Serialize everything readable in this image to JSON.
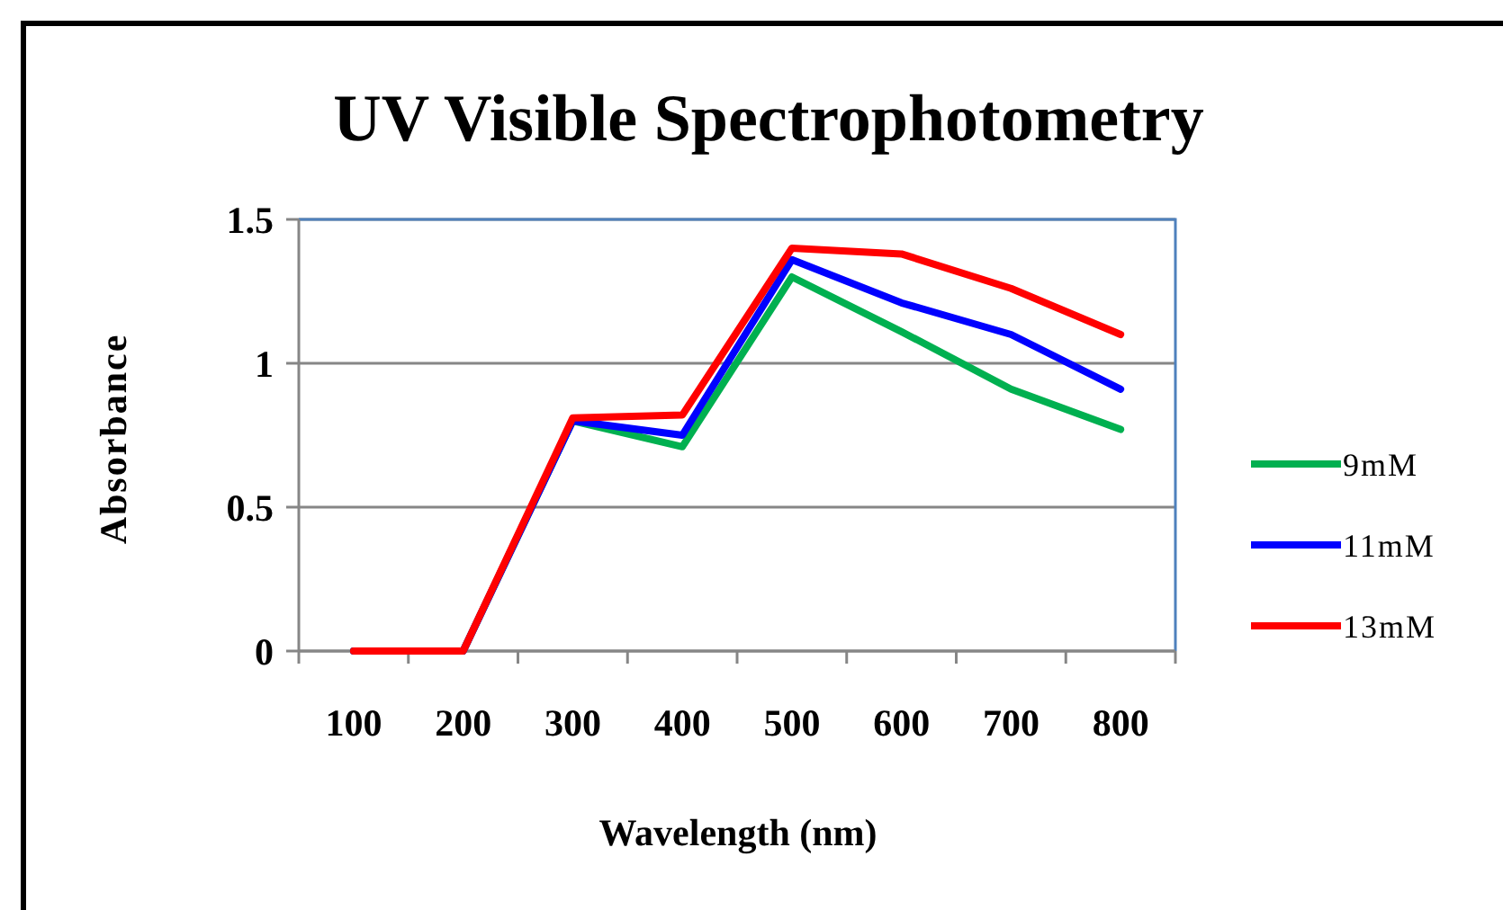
{
  "chart_data": {
    "type": "line",
    "title": "UV Visible Spectrophotometry",
    "xlabel": "Wavelength (nm)",
    "ylabel": "Absorbance",
    "categories": [
      "100",
      "200",
      "300",
      "400",
      "500",
      "600",
      "700",
      "800"
    ],
    "series": [
      {
        "name": "9mM",
        "color": "#00b050",
        "values": [
          0,
          0,
          0.8,
          0.71,
          1.3,
          1.11,
          0.91,
          0.77
        ]
      },
      {
        "name": "11mM",
        "color": "#0000ff",
        "values": [
          0,
          0,
          0.8,
          0.75,
          1.36,
          1.21,
          1.1,
          0.91
        ]
      },
      {
        "name": "13mM",
        "color": "#ff0000",
        "values": [
          0,
          0,
          0.81,
          0.82,
          1.4,
          1.38,
          1.26,
          1.1
        ]
      }
    ],
    "ylim": [
      0,
      1.5
    ],
    "yticks": [
      0,
      0.5,
      1,
      1.5
    ],
    "grid": "y",
    "legend": "right",
    "marker": "none",
    "line_style": "solid"
  }
}
